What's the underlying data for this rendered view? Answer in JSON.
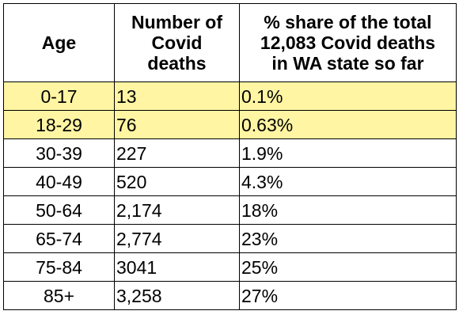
{
  "table": {
    "headers": {
      "age": [
        "Age"
      ],
      "number": [
        "Number of",
        "Covid",
        "deaths"
      ],
      "share": [
        "% share of the total",
        "12,083 Covid deaths",
        "in WA state so far"
      ]
    },
    "rows": [
      {
        "age": "0-17",
        "number": "13",
        "share": "0.1%",
        "highlight": true
      },
      {
        "age": "18-29",
        "number": "76",
        "share": "0.63%",
        "highlight": true
      },
      {
        "age": "30-39",
        "number": "227",
        "share": "1.9%",
        "highlight": false
      },
      {
        "age": "40-49",
        "number": "520",
        "share": "4.3%",
        "highlight": false
      },
      {
        "age": "50-64",
        "number": "2,174",
        "share": "18%",
        "highlight": false
      },
      {
        "age": "65-74",
        "number": "2,774",
        "share": "23%",
        "highlight": false
      },
      {
        "age": "75-84",
        "number": "3041",
        "share": "25%",
        "highlight": false
      },
      {
        "age": "85+",
        "number": "3,258",
        "share": "27%",
        "highlight": false
      }
    ]
  },
  "colors": {
    "highlight": "#fff5a3",
    "border": "#000000",
    "text": "#000000",
    "background": "#ffffff"
  }
}
